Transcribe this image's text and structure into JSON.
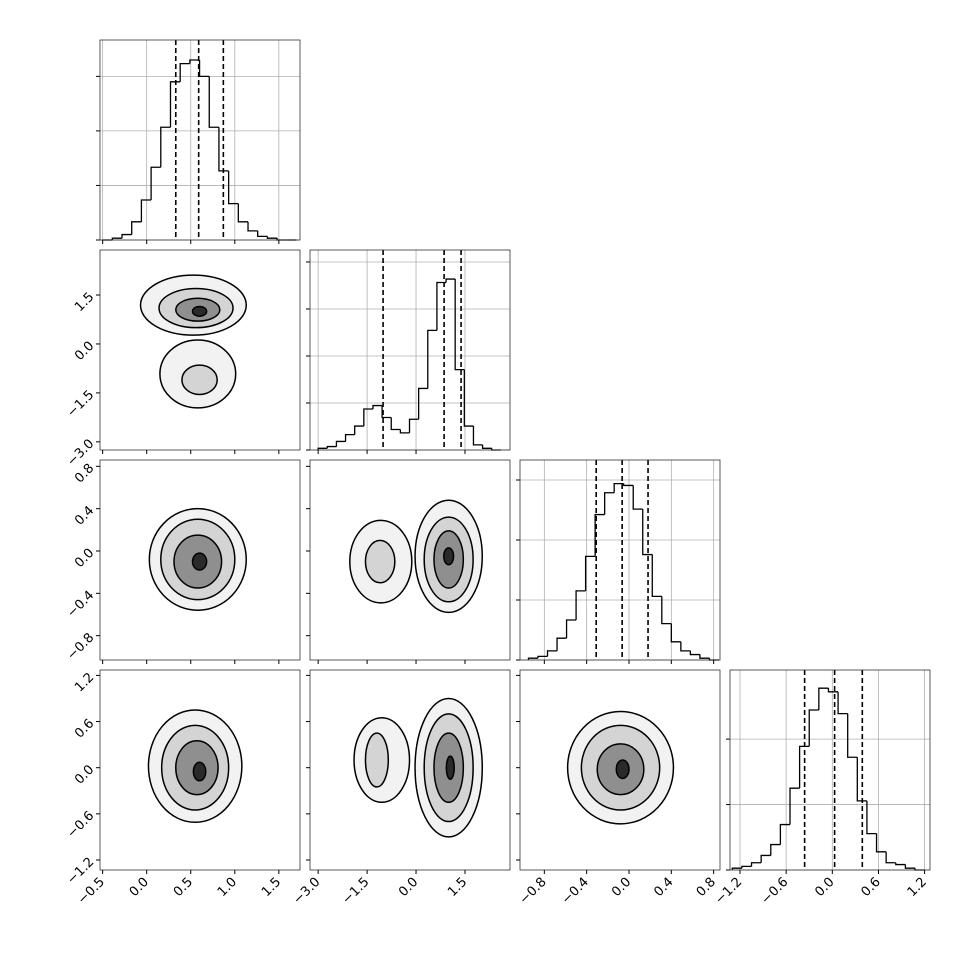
{
  "chart_data": {
    "type": "corner",
    "line_color": "#000000",
    "grid": true,
    "shades": [
      "#f2f2f2",
      "#d4d4d4",
      "#8f8f8f",
      "#2a2a2a"
    ],
    "parameters": [
      {
        "lim": [
          -0.53,
          1.74
        ],
        "ticks": [
          {
            "value": -0.5,
            "label": "−0.5"
          },
          {
            "value": 0,
            "label": "0.0"
          },
          0.5,
          {
            "value": 1,
            "label": "1.0"
          },
          1.5
        ],
        "bins": [
          -0.5,
          -0.39,
          -0.28,
          -0.17,
          -0.06,
          0.05,
          0.16,
          0.27,
          0.38,
          0.49,
          0.6,
          0.71,
          0.82,
          0.93,
          1.04,
          1.15,
          1.26,
          1.37,
          1.48,
          1.59,
          1.7
        ],
        "counts": [
          0,
          1,
          3,
          10,
          22,
          40,
          62,
          87,
          97,
          99,
          90,
          62,
          38,
          20,
          10,
          5,
          2,
          1,
          0,
          0
        ],
        "hist_ylim": [
          0,
          110
        ],
        "hist_yticks": [
          0,
          30,
          60,
          90
        ],
        "quantiles": [
          0.33,
          0.59,
          0.87
        ]
      },
      {
        "lim": [
          -3.25,
          2.88
        ],
        "ticks": [
          {
            "value": -3,
            "label": "−3.0"
          },
          {
            "value": -1.5,
            "label": "−1.5"
          },
          {
            "value": 0,
            "label": "0.0"
          },
          1.5
        ],
        "bins": [
          -3.0,
          -2.72,
          -2.44,
          -2.16,
          -1.88,
          -1.6,
          -1.32,
          -1.04,
          -0.76,
          -0.48,
          -0.2,
          0.08,
          0.36,
          0.64,
          0.92,
          1.2,
          1.48,
          1.76,
          2.04,
          2.32,
          2.6
        ],
        "counts": [
          1,
          2,
          5,
          9,
          14,
          24,
          26,
          19,
          12,
          10,
          18,
          36,
          70,
          98,
          100,
          47,
          14,
          3,
          1,
          0
        ],
        "hist_ylim": [
          0,
          117
        ],
        "hist_yticks": [
          0,
          27.5,
          55,
          82.5,
          110
        ],
        "quantiles": [
          -1.01,
          0.86,
          1.38
        ]
      },
      {
        "lim": [
          -1.03,
          0.86
        ],
        "ticks": [
          {
            "value": -0.8,
            "label": "−0.8"
          },
          {
            "value": -0.4,
            "label": "−0.4"
          },
          {
            "value": 0,
            "label": "0.0"
          },
          0.4,
          0.8
        ],
        "bins": [
          -0.95,
          -0.86,
          -0.77,
          -0.68,
          -0.59,
          -0.5,
          -0.41,
          -0.32,
          -0.23,
          -0.14,
          -0.05,
          0.04,
          0.13,
          0.22,
          0.31,
          0.4,
          0.49,
          0.58,
          0.67,
          0.76,
          0.85
        ],
        "counts": [
          1,
          2,
          5,
          12,
          22,
          38,
          57,
          80,
          92,
          97,
          96,
          83,
          58,
          35,
          20,
          10,
          5,
          3,
          1,
          0
        ],
        "hist_ylim": [
          0,
          110
        ],
        "hist_yticks": [
          0,
          33,
          66,
          99
        ],
        "quantiles": [
          -0.31,
          -0.065,
          0.18
        ]
      },
      {
        "lim": [
          -1.33,
          1.27
        ],
        "ticks": [
          {
            "value": -1.2,
            "label": "−1.2"
          },
          {
            "value": -0.6,
            "label": "−0.6"
          },
          {
            "value": 0,
            "label": "0.0"
          },
          0.6,
          1.2
        ],
        "bins": [
          -1.3,
          -1.175,
          -1.05,
          -0.925,
          -0.8,
          -0.675,
          -0.55,
          -0.425,
          -0.3,
          -0.175,
          -0.05,
          0.075,
          0.2,
          0.325,
          0.45,
          0.575,
          0.7,
          0.825,
          0.95,
          1.075,
          1.2
        ],
        "counts": [
          1,
          2,
          4,
          8,
          14,
          25,
          45,
          68,
          88,
          100,
          98,
          86,
          62,
          38,
          20,
          10,
          4,
          3,
          1,
          0
        ],
        "hist_ylim": [
          0,
          110
        ],
        "hist_yticks": [
          0,
          36,
          72
        ],
        "quantiles": [
          -0.36,
          0.03,
          0.39
        ]
      }
    ],
    "panels": [
      {
        "x": 0,
        "y": 1,
        "contours": [
          [
            0.53,
            1.19,
            0.6,
            0.92
          ],
          [
            0.56,
            1.1,
            0.42,
            0.6
          ],
          [
            0.58,
            1.05,
            0.25,
            0.35
          ],
          [
            0.6,
            1.0,
            0.08,
            0.15
          ],
          [
            0.58,
            -0.92,
            0.43,
            1.04
          ],
          [
            0.6,
            -1.1,
            0.2,
            0.45
          ]
        ]
      },
      {
        "x": 0,
        "y": 2,
        "contours": [
          [
            0.58,
            -0.08,
            0.55,
            0.48
          ],
          [
            0.58,
            -0.08,
            0.42,
            0.38
          ],
          [
            0.58,
            -0.1,
            0.27,
            0.25
          ],
          [
            0.6,
            -0.1,
            0.08,
            0.08
          ]
        ]
      },
      {
        "x": 1,
        "y": 2,
        "contours": [
          [
            1.0,
            -0.05,
            1.03,
            0.53
          ],
          [
            1.0,
            -0.08,
            0.75,
            0.4
          ],
          [
            1.0,
            -0.08,
            0.45,
            0.27
          ],
          [
            1.0,
            -0.05,
            0.15,
            0.08
          ],
          [
            -1.08,
            -0.1,
            0.95,
            0.39
          ],
          [
            -1.1,
            -0.1,
            0.45,
            0.2
          ]
        ]
      },
      {
        "x": 0,
        "y": 3,
        "contours": [
          [
            0.55,
            0.02,
            0.53,
            0.73
          ],
          [
            0.55,
            0.0,
            0.38,
            0.55
          ],
          [
            0.57,
            0.0,
            0.24,
            0.35
          ],
          [
            0.6,
            -0.05,
            0.07,
            0.12
          ]
        ]
      },
      {
        "x": 1,
        "y": 3,
        "contours": [
          [
            1.0,
            0.0,
            1.03,
            0.9
          ],
          [
            1.0,
            0.0,
            0.75,
            0.7
          ],
          [
            1.0,
            0.0,
            0.45,
            0.45
          ],
          [
            1.05,
            0.0,
            0.12,
            0.15
          ],
          [
            -1.05,
            0.1,
            0.85,
            0.55
          ],
          [
            -1.2,
            0.1,
            0.35,
            0.35
          ]
        ]
      },
      {
        "x": 2,
        "y": 3,
        "contours": [
          [
            -0.08,
            0.0,
            0.5,
            0.73
          ],
          [
            -0.08,
            0.0,
            0.37,
            0.55
          ],
          [
            -0.08,
            -0.02,
            0.22,
            0.33
          ],
          [
            -0.06,
            -0.02,
            0.06,
            0.12
          ]
        ]
      }
    ]
  }
}
